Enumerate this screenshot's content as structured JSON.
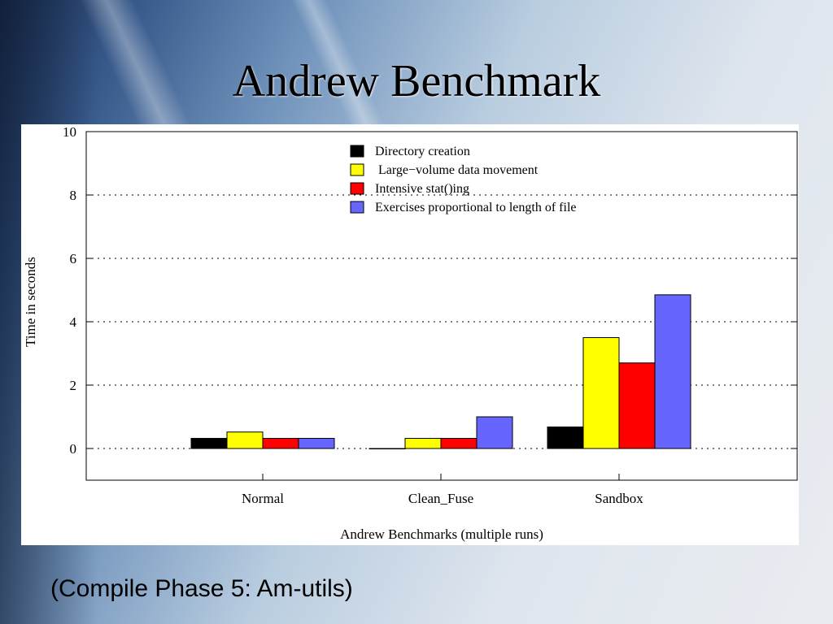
{
  "slide": {
    "title": "Andrew Benchmark",
    "caption": "(Compile Phase 5: Am-utils)"
  },
  "chart_data": {
    "type": "bar",
    "xlabel": "Andrew Benchmarks (multiple runs)",
    "ylabel": "Time in seconds",
    "ylim": [
      -1,
      10
    ],
    "yticks": [
      0,
      2,
      4,
      6,
      8,
      10
    ],
    "grid": true,
    "legend_position": "top-center",
    "categories": [
      "Normal",
      "Clean_Fuse",
      "Sandbox"
    ],
    "series": [
      {
        "name": "Directory creation",
        "color": "#000000",
        "values": [
          0.32,
          0.0,
          0.68
        ]
      },
      {
        "name": " Large−volume data movement",
        "color": "#ffff00",
        "values": [
          0.52,
          0.32,
          3.5
        ]
      },
      {
        "name": "Intensive stat()ing",
        "color": "#ff0000",
        "values": [
          0.32,
          0.32,
          2.7
        ]
      },
      {
        "name": "Exercises proportional to length of file",
        "color": "#6666ff",
        "values": [
          0.32,
          1.0,
          4.85
        ]
      }
    ]
  }
}
